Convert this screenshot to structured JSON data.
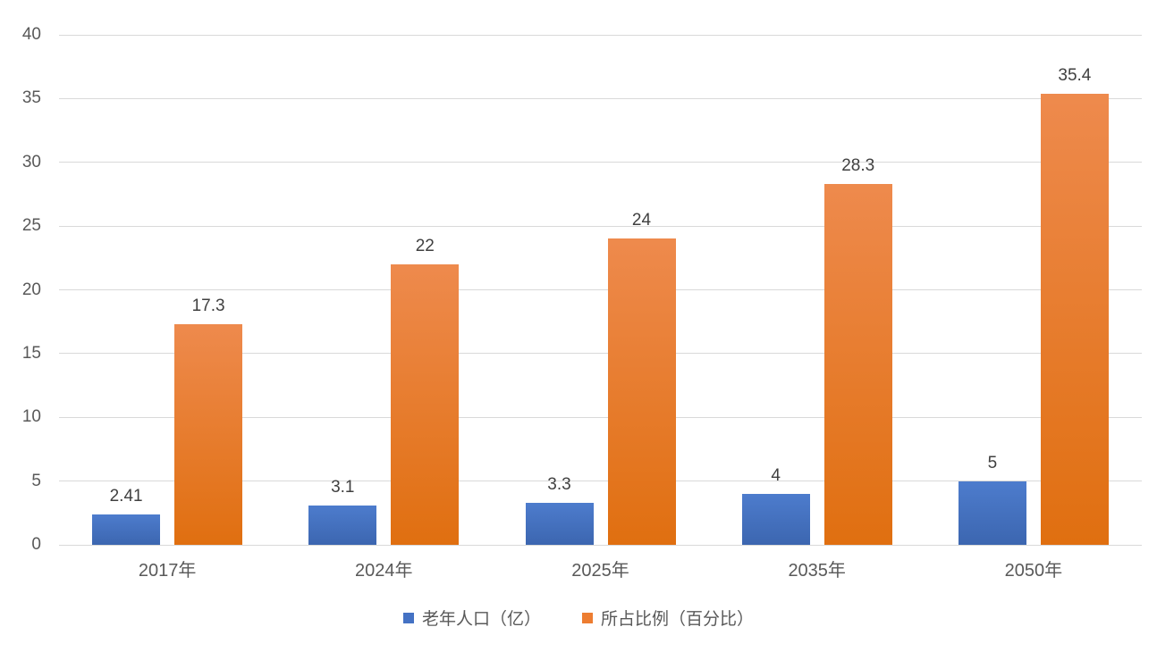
{
  "chart_data": {
    "type": "bar",
    "categories": [
      "2017年",
      "2024年",
      "2025年",
      "2035年",
      "2050年"
    ],
    "series": [
      {
        "name": "老年人口（亿）",
        "values": [
          2.41,
          3.1,
          3.3,
          4,
          5
        ],
        "labels": [
          "2.41",
          "3.1",
          "3.3",
          "4",
          "5"
        ],
        "color": "#4472C4",
        "gradient_top": "#4d7ccd",
        "gradient_bottom": "#3c66b0"
      },
      {
        "name": "所占比例（百分比）",
        "values": [
          17.3,
          22,
          24,
          28.3,
          35.4
        ],
        "labels": [
          "17.3",
          "22",
          "24",
          "28.3",
          "35.4"
        ],
        "color": "#ED7D31",
        "gradient_top": "#ee8a4d",
        "gradient_bottom": "#e06f10"
      }
    ],
    "title": "",
    "xlabel": "",
    "ylabel": "",
    "ylim": [
      0,
      40
    ],
    "yticks": [
      0,
      5,
      10,
      15,
      20,
      25,
      30,
      35,
      40
    ],
    "grid": true,
    "gridline_color": "#d9d9d9",
    "axis_text_color": "#595959",
    "data_label_color": "#404040",
    "background_color": "#ffffff",
    "legend_position": "bottom"
  }
}
